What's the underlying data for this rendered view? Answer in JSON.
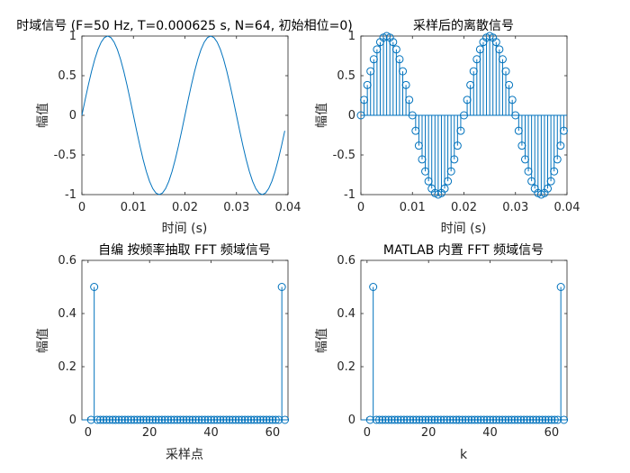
{
  "figure": {
    "background": "#ffffff",
    "line_color": "#0072BD",
    "axes_color": "#262626"
  },
  "chart_data": [
    {
      "type": "line",
      "title": "时域信号 (F=50 Hz, T=0.000625 s, N=64, 初始相位=0)",
      "xlabel": "时间 (s)",
      "ylabel": "幅值",
      "xlim": [
        0,
        0.04
      ],
      "ylim": [
        -1,
        1
      ],
      "xticks": [
        "0",
        "0.01",
        "0.02",
        "0.03",
        "0.04"
      ],
      "yticks": [
        "-1",
        "-0.5",
        "0",
        "0.5",
        "1"
      ],
      "series": [
        {
          "function": "sin(2*pi*50*t)",
          "t_start": 0,
          "t_end": 0.039375,
          "samples": 64
        }
      ]
    },
    {
      "type": "stem",
      "title": "采样后的离散信号",
      "xlabel": "时间 (s)",
      "ylabel": "幅值",
      "xlim": [
        0,
        0.04
      ],
      "ylim": [
        -1,
        1
      ],
      "xticks": [
        "0",
        "0.01",
        "0.02",
        "0.03",
        "0.04"
      ],
      "yticks": [
        "-1",
        "-0.5",
        "0",
        "0.5",
        "1"
      ],
      "series": [
        {
          "function": "sin(2*pi*50*t)",
          "t_start": 0,
          "t_step": 0.000625,
          "samples": 64
        }
      ]
    },
    {
      "type": "stem",
      "title": "自编 按频率抽取 FFT 频域信号",
      "xlabel": "采样点",
      "ylabel": "幅值",
      "xlim": [
        -2,
        65
      ],
      "ylim": [
        0,
        0.6
      ],
      "xticks": [
        "0",
        "20",
        "40",
        "60"
      ],
      "yticks": [
        "0",
        "0.2",
        "0.4",
        "0.6"
      ],
      "x_start": 1,
      "values": [
        0,
        0.5,
        0,
        0,
        0,
        0,
        0,
        0,
        0,
        0,
        0,
        0,
        0,
        0,
        0,
        0,
        0,
        0,
        0,
        0,
        0,
        0,
        0,
        0,
        0,
        0,
        0,
        0,
        0,
        0,
        0,
        0,
        0,
        0,
        0,
        0,
        0,
        0,
        0,
        0,
        0,
        0,
        0,
        0,
        0,
        0,
        0,
        0,
        0,
        0,
        0,
        0,
        0,
        0,
        0,
        0,
        0,
        0,
        0,
        0,
        0,
        0,
        0.5,
        0
      ]
    },
    {
      "type": "stem",
      "title": "MATLAB 内置 FFT 频域信号",
      "xlabel": "k",
      "ylabel": "幅值",
      "xlim": [
        -2,
        65
      ],
      "ylim": [
        0,
        0.6
      ],
      "xticks": [
        "0",
        "20",
        "40",
        "60"
      ],
      "yticks": [
        "0",
        "0.2",
        "0.4",
        "0.6"
      ],
      "x_start": 1,
      "values": [
        0,
        0.5,
        0,
        0,
        0,
        0,
        0,
        0,
        0,
        0,
        0,
        0,
        0,
        0,
        0,
        0,
        0,
        0,
        0,
        0,
        0,
        0,
        0,
        0,
        0,
        0,
        0,
        0,
        0,
        0,
        0,
        0,
        0,
        0,
        0,
        0,
        0,
        0,
        0,
        0,
        0,
        0,
        0,
        0,
        0,
        0,
        0,
        0,
        0,
        0,
        0,
        0,
        0,
        0,
        0,
        0,
        0,
        0,
        0,
        0,
        0,
        0,
        0.5,
        0
      ]
    }
  ]
}
